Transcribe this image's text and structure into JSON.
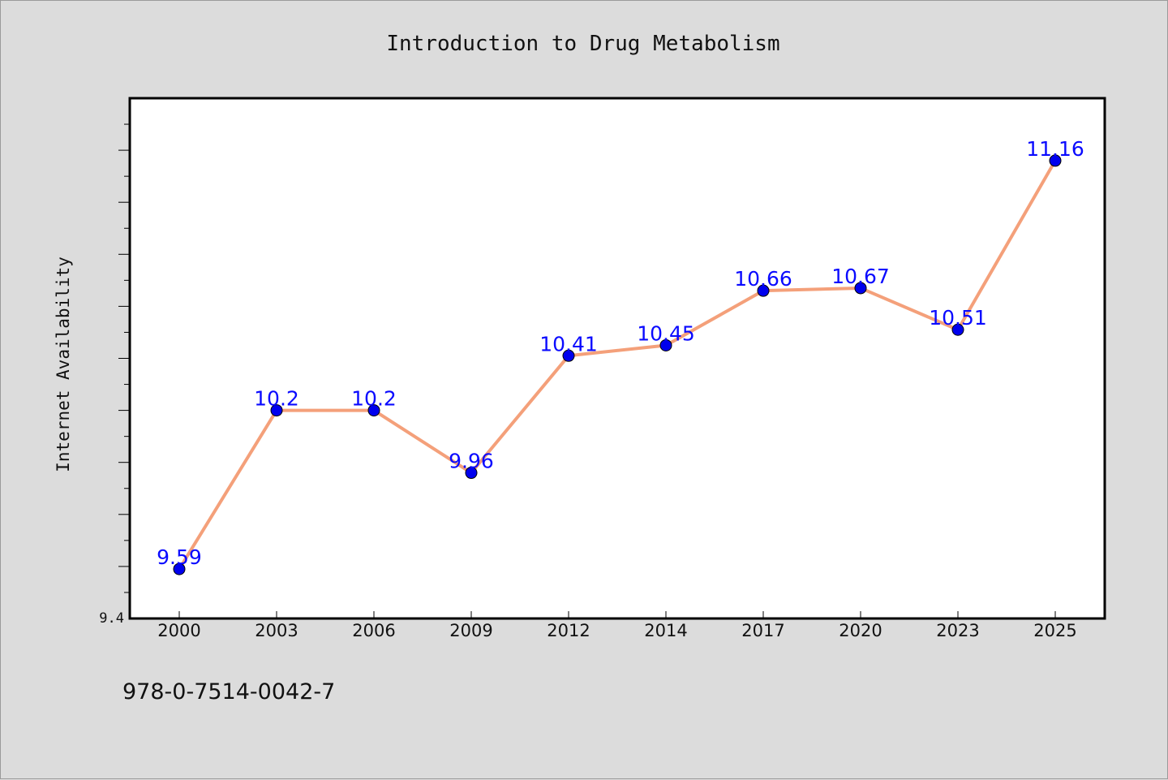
{
  "chart_data": {
    "type": "line",
    "title": "Introduction to Drug Metabolism",
    "xlabel": "",
    "ylabel": "Internet Availability",
    "categories": [
      "2000",
      "2003",
      "2006",
      "2009",
      "2012",
      "2014",
      "2017",
      "2020",
      "2023",
      "2025"
    ],
    "series": [
      {
        "values": [
          9.59,
          10.2,
          10.2,
          9.96,
          10.41,
          10.45,
          10.66,
          10.67,
          10.51,
          11.16
        ],
        "labels": [
          "9.59",
          "10.2",
          "10.2",
          "9.96",
          "10.41",
          "10.45",
          "10.66",
          "10.67",
          "10.51",
          "11.16"
        ],
        "line_color": "#f4a07a",
        "marker_color": "#0000ee"
      }
    ],
    "ylim": [
      9.4,
      11.4
    ],
    "y_min_label": "9.4",
    "grid": false,
    "plot_background": "#ffffff"
  },
  "footer": {
    "isbn": "978-0-7514-0042-7"
  }
}
